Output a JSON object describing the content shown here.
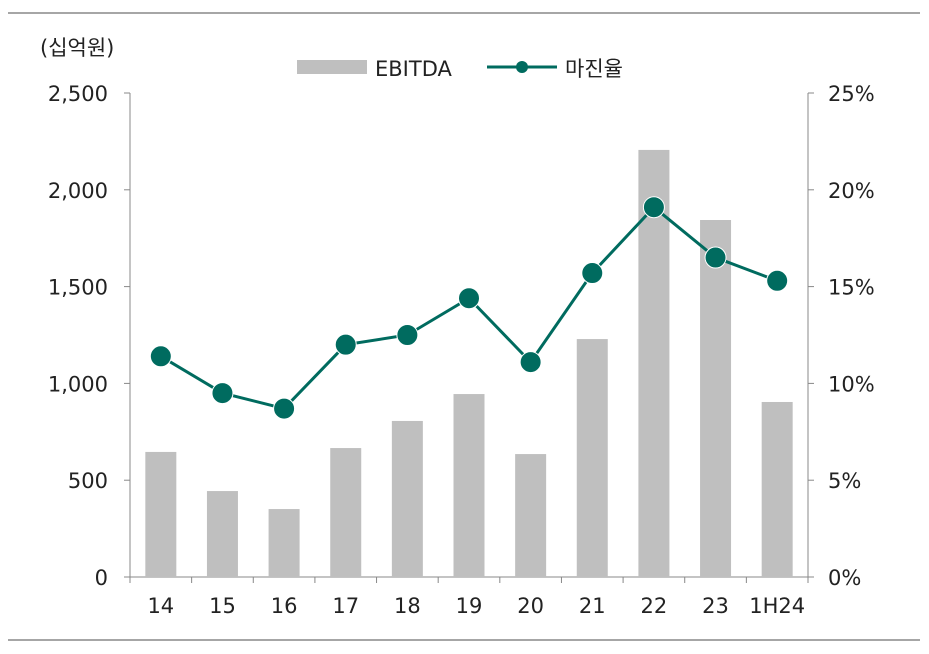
{
  "chart_data": {
    "type": "bar+line",
    "unit_label": "(십억원)",
    "categories": [
      "14",
      "15",
      "16",
      "17",
      "18",
      "19",
      "20",
      "21",
      "22",
      "23",
      "1H24"
    ],
    "series": [
      {
        "name": "EBITDA",
        "type": "bar",
        "axis": "left",
        "color": "#BFBFBF",
        "values": [
          646,
          444,
          351,
          666,
          806,
          945,
          635,
          1229,
          2206,
          1844,
          904
        ]
      },
      {
        "name": "마진율",
        "type": "line",
        "axis": "right",
        "color": "#006B5F",
        "values": [
          11.4,
          9.5,
          8.7,
          12.0,
          12.5,
          14.4,
          11.1,
          15.7,
          19.1,
          16.5,
          15.3
        ]
      }
    ],
    "y_left": {
      "range": [
        0,
        2500
      ],
      "ticks": [
        "0",
        "500",
        "1,000",
        "1,500",
        "2,000",
        "2,500"
      ]
    },
    "y_right": {
      "range": [
        0,
        25
      ],
      "ticks": [
        "0%",
        "5%",
        "10%",
        "15%",
        "20%",
        "25%"
      ]
    },
    "grid": false,
    "legend": "top-center"
  }
}
